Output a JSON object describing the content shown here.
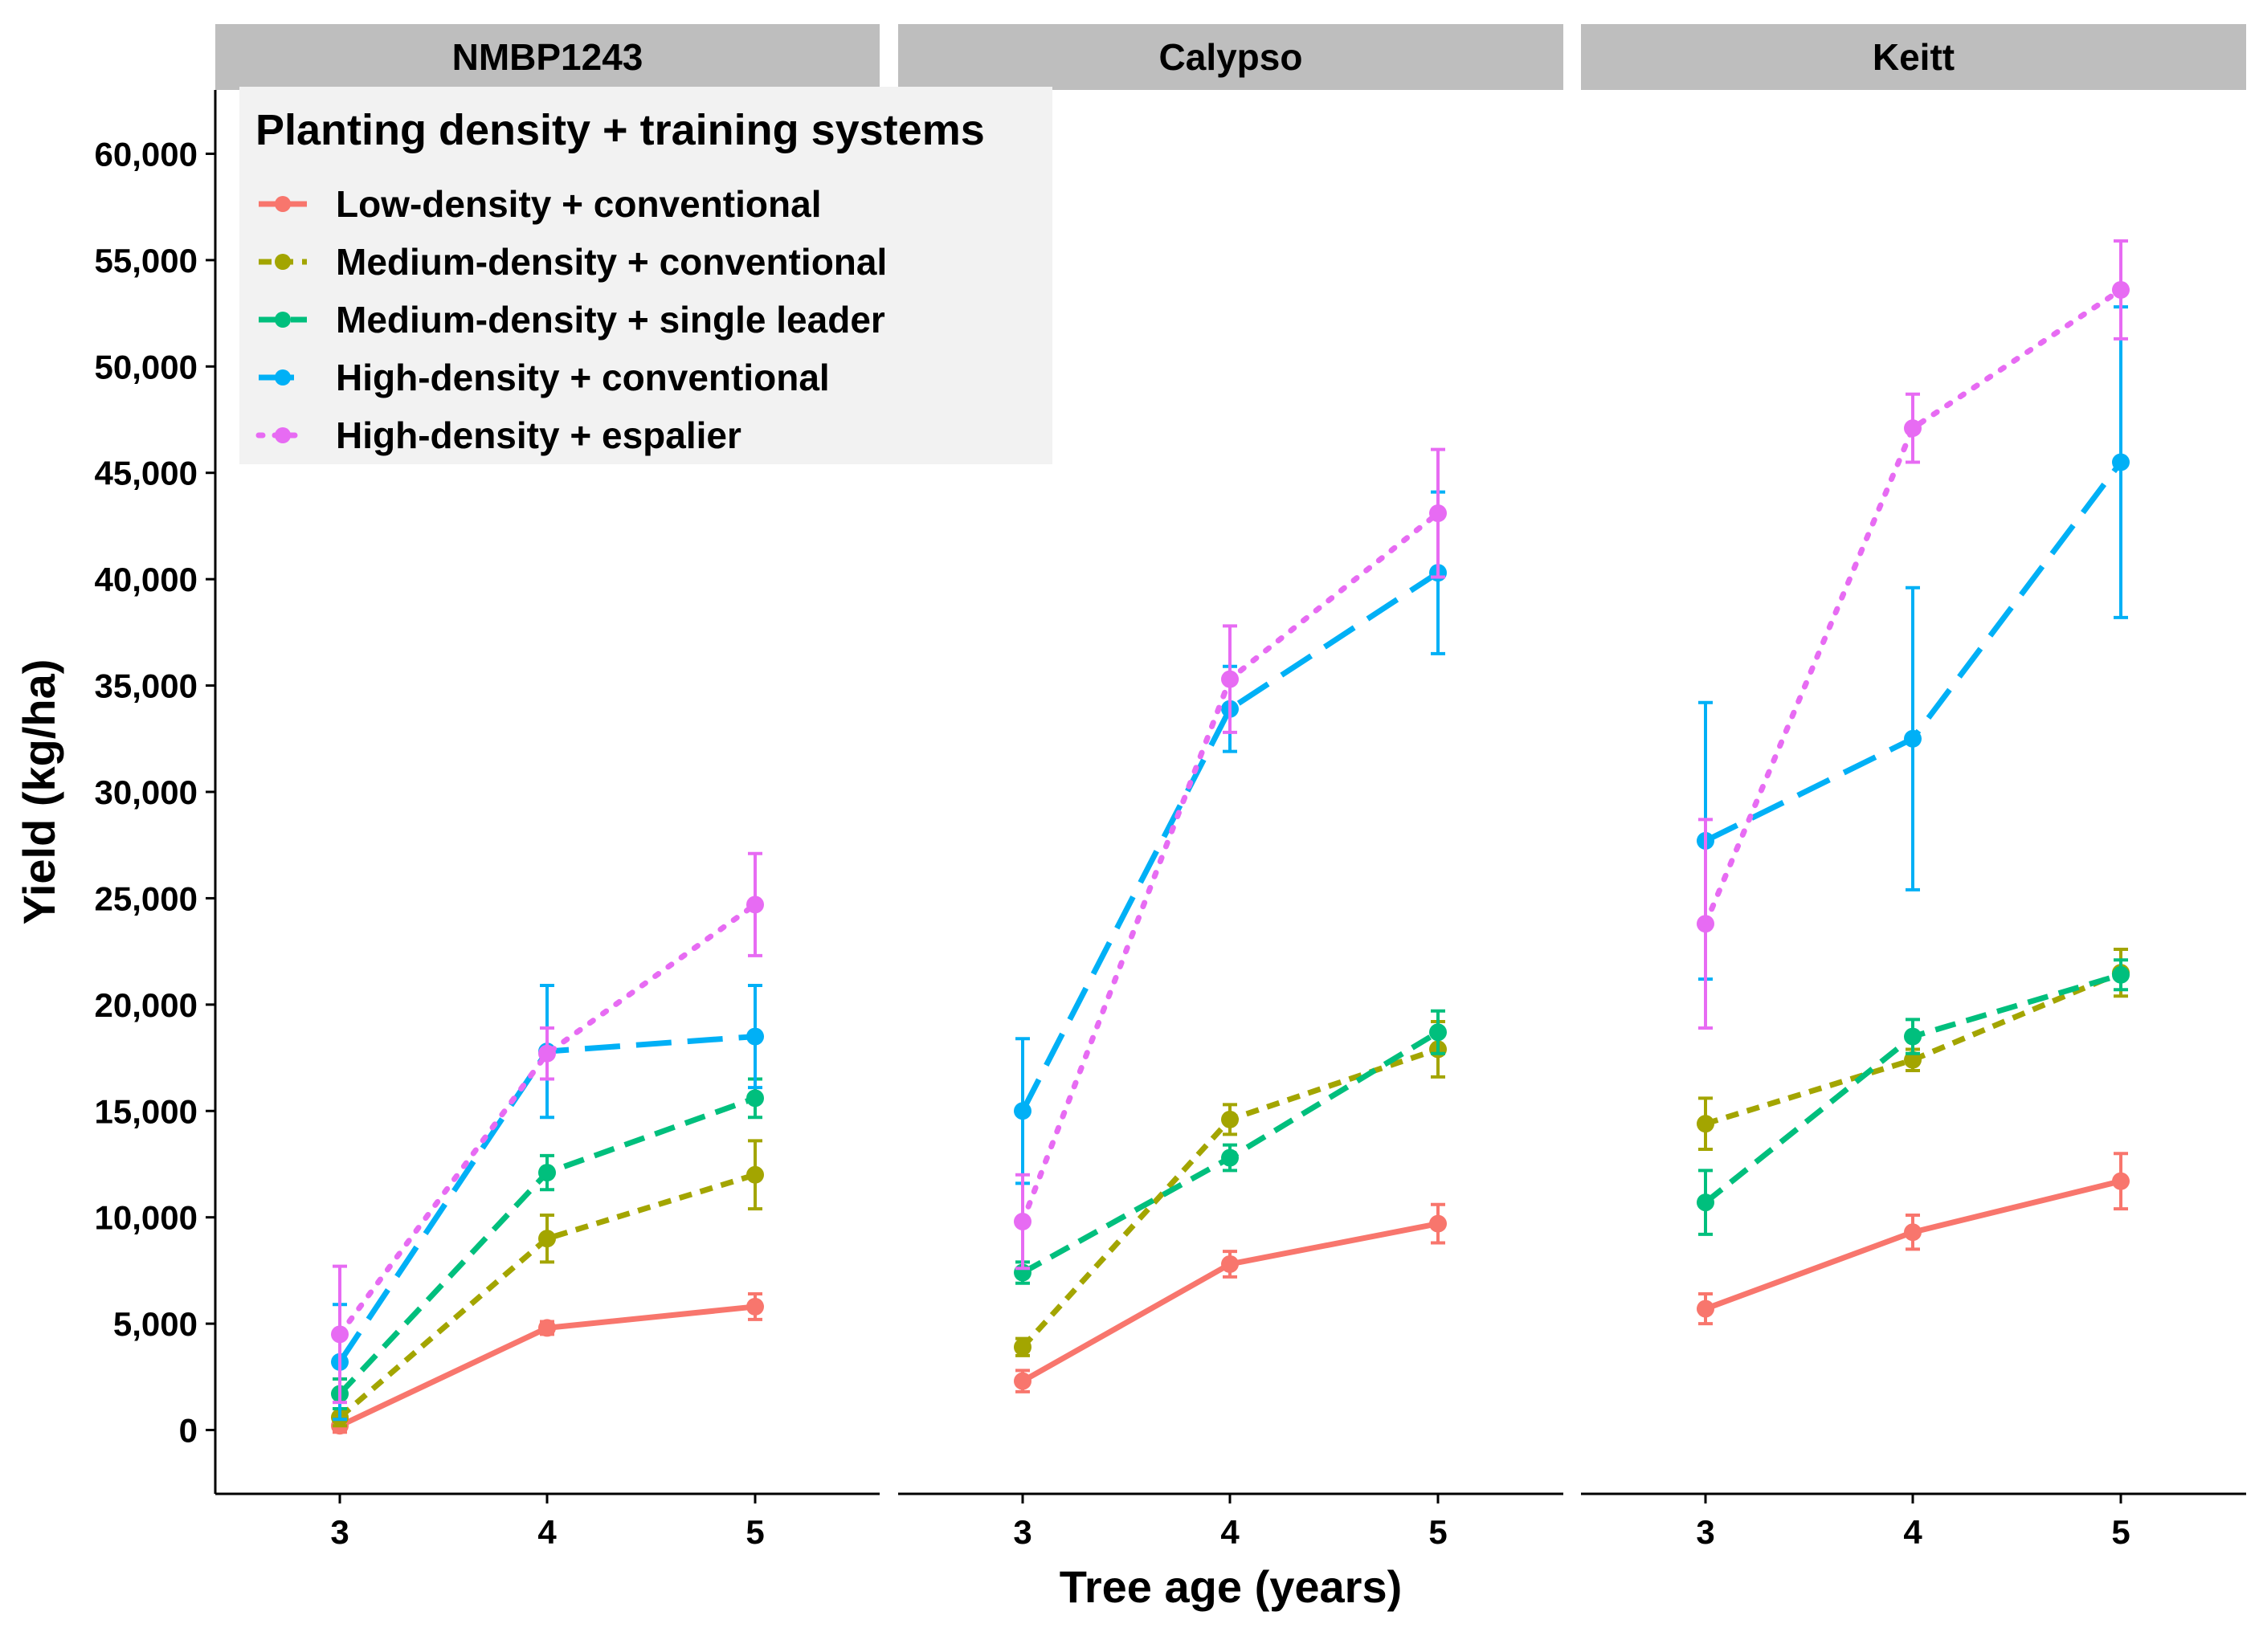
{
  "chart_data": {
    "type": "line",
    "facet_by": "cultivar",
    "panels": [
      "NMBP1243",
      "Calypso",
      "Keitt"
    ],
    "x": [
      3,
      4,
      5
    ],
    "xlabel": "Tree age (years)",
    "ylabel": "Yield (kg/ha)",
    "ylim": [
      -3000,
      63000
    ],
    "yticks": [
      0,
      5000,
      10000,
      15000,
      20000,
      25000,
      30000,
      35000,
      40000,
      45000,
      50000,
      55000,
      60000
    ],
    "ytick_labels": [
      "0",
      "5,000",
      "10,000",
      "15,000",
      "20,000",
      "25,000",
      "30,000",
      "35,000",
      "40,000",
      "45,000",
      "50,000",
      "55,000",
      "60,000"
    ],
    "xtick_labels": [
      "3",
      "4",
      "5"
    ],
    "legend_title": "Planting density + training systems",
    "legend_position": "top-left",
    "grid": false,
    "series": [
      {
        "name": "Low-density + conventional",
        "color": "#F8766D",
        "dash": "solid",
        "panels": {
          "NMBP1243": {
            "values": [
              200,
              4800,
              5800
            ],
            "errors": [
              300,
              300,
              600
            ]
          },
          "Calypso": {
            "values": [
              2300,
              7800,
              9700
            ],
            "errors": [
              500,
              600,
              900
            ]
          },
          "Keitt": {
            "values": [
              5700,
              9300,
              11700
            ],
            "errors": [
              700,
              800,
              1300
            ]
          }
        }
      },
      {
        "name": "Medium-density + conventional",
        "color": "#A3A500",
        "dash": "short-dash",
        "panels": {
          "NMBP1243": {
            "values": [
              600,
              9000,
              12000
            ],
            "errors": [
              400,
              1100,
              1600
            ]
          },
          "Calypso": {
            "values": [
              3900,
              14600,
              17900
            ],
            "errors": [
              400,
              700,
              1300
            ]
          },
          "Keitt": {
            "values": [
              14400,
              17400,
              21500
            ],
            "errors": [
              1200,
              500,
              1100
            ]
          }
        }
      },
      {
        "name": "Medium-density + single leader",
        "color": "#00BF7D",
        "dash": "dash",
        "panels": {
          "NMBP1243": {
            "values": [
              1700,
              12100,
              15600
            ],
            "errors": [
              700,
              800,
              900
            ]
          },
          "Calypso": {
            "values": [
              7400,
              12800,
              18700
            ],
            "errors": [
              500,
              600,
              1000
            ]
          },
          "Keitt": {
            "values": [
              10700,
              18500,
              21400
            ],
            "errors": [
              1500,
              800,
              700
            ]
          }
        }
      },
      {
        "name": "High-density + conventional",
        "color": "#00B0F6",
        "dash": "long-dash",
        "panels": {
          "NMBP1243": {
            "values": [
              3200,
              17800,
              18500
            ],
            "errors": [
              2700,
              3100,
              2400
            ]
          },
          "Calypso": {
            "values": [
              15000,
              33900,
              40300
            ],
            "errors": [
              3400,
              2000,
              3800
            ]
          },
          "Keitt": {
            "values": [
              27700,
              32500,
              45500
            ],
            "errors": [
              6500,
              7100,
              7300
            ]
          }
        }
      },
      {
        "name": "High-density + espalier",
        "color": "#E76BF3",
        "dash": "dotted",
        "panels": {
          "NMBP1243": {
            "values": [
              4500,
              17700,
              24700
            ],
            "errors": [
              3200,
              1200,
              2400
            ]
          },
          "Calypso": {
            "values": [
              9800,
              35300,
              43100
            ],
            "errors": [
              2200,
              2500,
              3000
            ]
          },
          "Keitt": {
            "values": [
              23800,
              47100,
              53600
            ],
            "errors": [
              4900,
              1600,
              2300
            ]
          }
        }
      }
    ]
  }
}
